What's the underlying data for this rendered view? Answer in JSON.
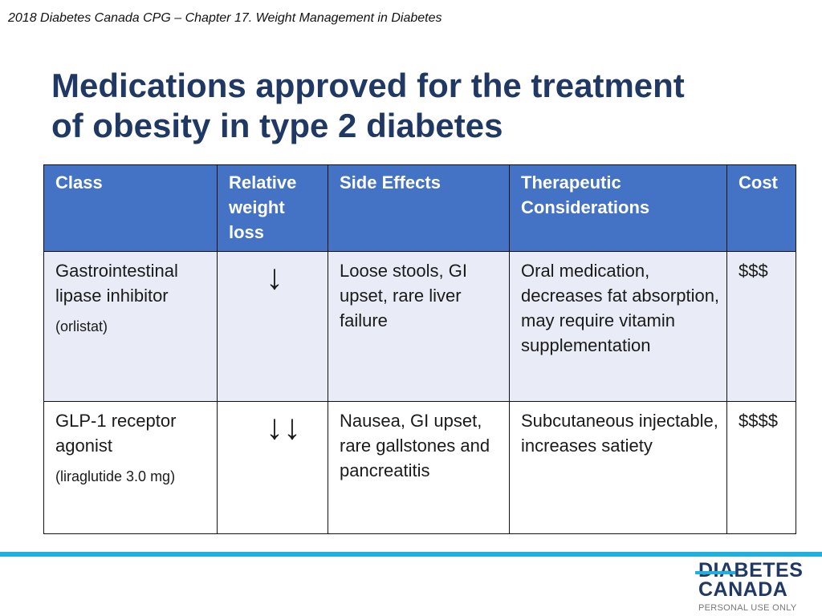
{
  "header_note": "2018 Diabetes Canada CPG – Chapter 17.  Weight Management in Diabetes",
  "title": {
    "line1": "Medications approved for the treatment",
    "line2": "of obesity in type 2 diabetes"
  },
  "table": {
    "headers": [
      "Class",
      "Relative weight loss",
      "Side Effects",
      "Therapeutic Considerations",
      "Cost"
    ],
    "rows": [
      {
        "class": "Gastrointestinal lipase inhibitor",
        "drug": "(orlistat)",
        "weight_loss": "↓",
        "side_effects": "Loose stools, GI upset, rare liver failure",
        "considerations": "Oral medication, decreases fat absorption, may require vitamin supplementation",
        "cost": "$$$"
      },
      {
        "class": "GLP-1 receptor agonist",
        "drug": "(liraglutide 3.0 mg)",
        "weight_loss": "↓↓",
        "side_effects": "Nausea, GI upset, rare gallstones and pancreatitis",
        "considerations": "Subcutaneous injectable, increases satiety",
        "cost": "$$$$"
      }
    ]
  },
  "logo": {
    "line1": "DIABETES",
    "line2": "CANADA",
    "tag": "PERSONAL USE ONLY"
  },
  "colors": {
    "title": "#1f3864",
    "header_bg": "#4472c4",
    "row_alt_bg": "#e9ecf6",
    "accent_rule": "#20b0e0"
  }
}
